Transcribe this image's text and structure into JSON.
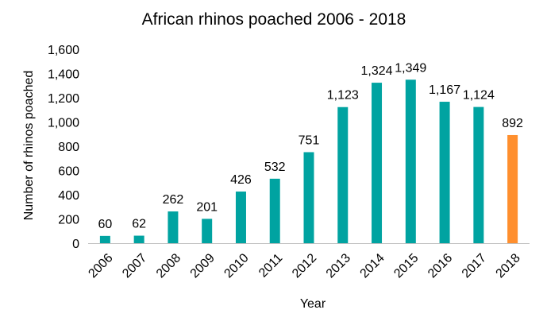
{
  "chart_data": {
    "type": "bar",
    "title": "African rhinos poached 2006 - 2018",
    "xlabel": "Year",
    "ylabel": "Number of rhinos poached",
    "categories": [
      "2006",
      "2007",
      "2008",
      "2009",
      "2010",
      "2011",
      "2012",
      "2013",
      "2014",
      "2015",
      "2016",
      "2017",
      "2018"
    ],
    "values": [
      60,
      62,
      262,
      201,
      426,
      532,
      751,
      1123,
      1324,
      1349,
      1167,
      1124,
      892
    ],
    "value_labels": [
      "60",
      "62",
      "262",
      "201",
      "426",
      "532",
      "751",
      "1,123",
      "1,324",
      "1,349",
      "1,167",
      "1,124",
      "892"
    ],
    "ylim": [
      0,
      1600
    ],
    "yticks": [
      0,
      200,
      400,
      600,
      800,
      1000,
      1200,
      1400,
      1600
    ],
    "ytick_labels": [
      "0",
      "200",
      "400",
      "600",
      "800",
      "1,000",
      "1,200",
      "1,400",
      "1,600"
    ],
    "grid": false,
    "legend": "none",
    "colors": {
      "default": "#00a3a1",
      "highlight": "#ff8f2e",
      "axis": "#bfbfbf"
    },
    "highlight_category": "2018"
  }
}
